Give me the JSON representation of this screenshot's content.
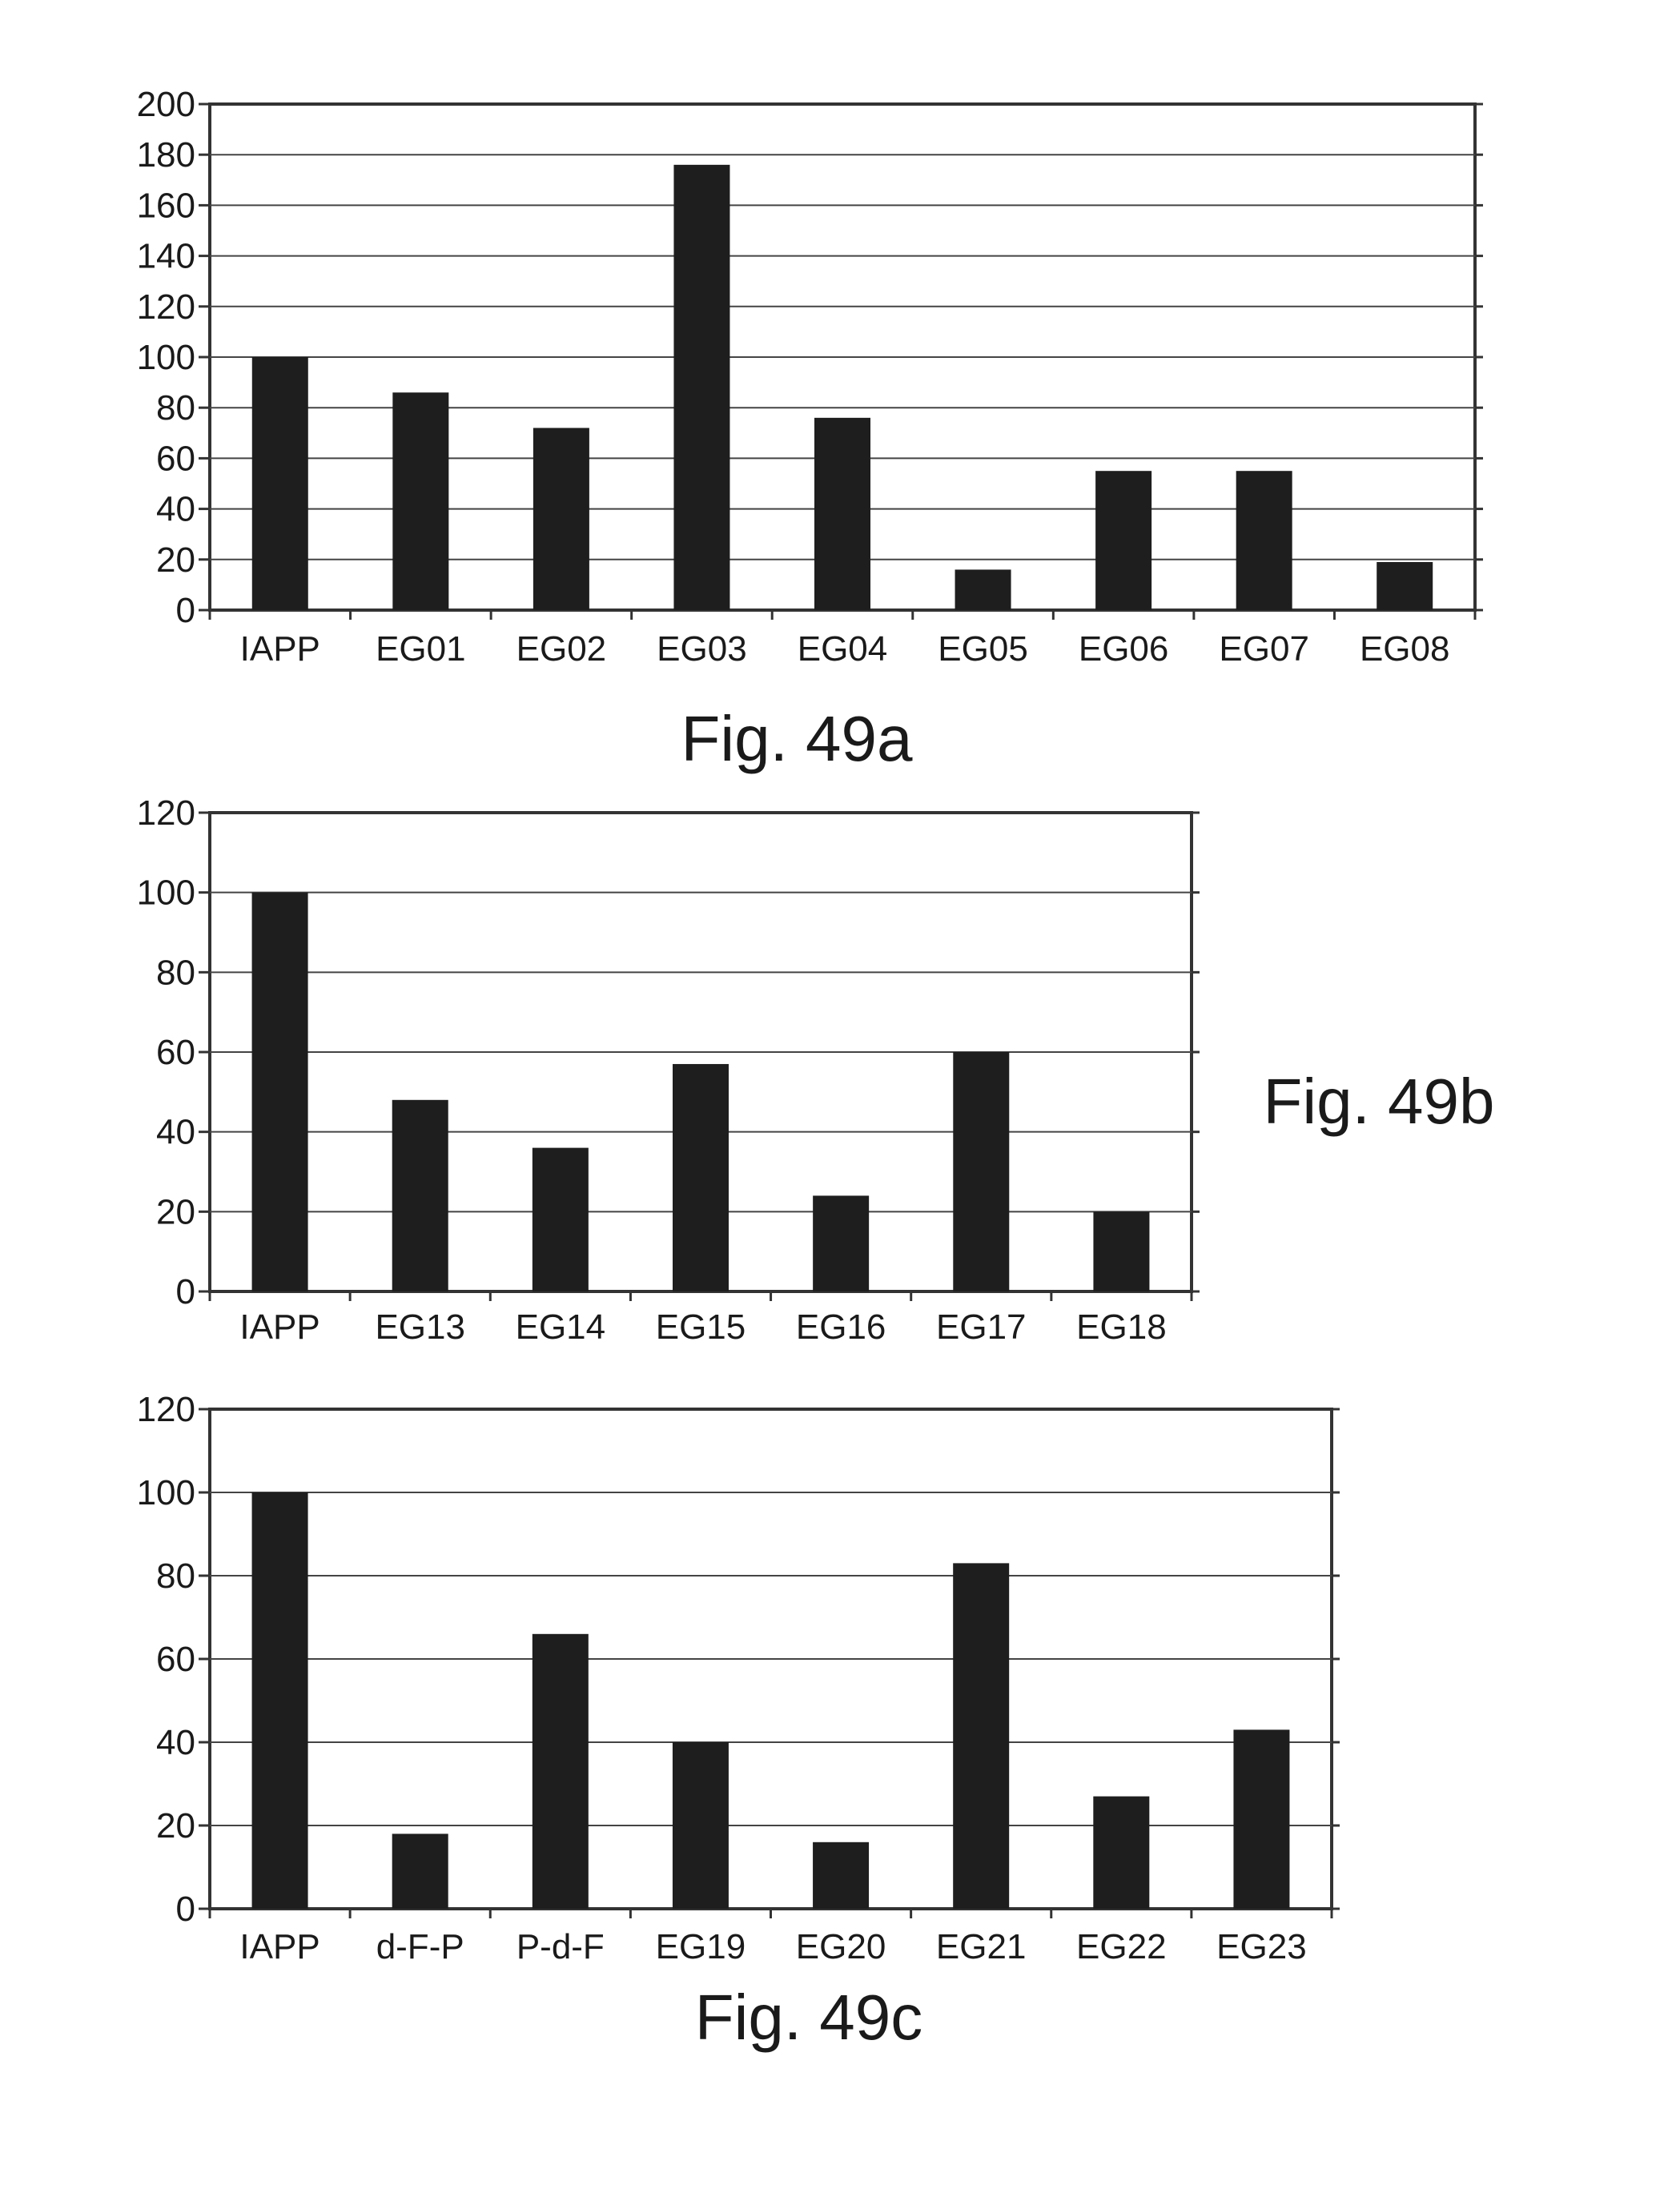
{
  "chart_data": [
    {
      "type": "bar",
      "caption": "Fig. 49a",
      "categories": [
        "IAPP",
        "EG01",
        "EG02",
        "EG03",
        "EG04",
        "EG05",
        "EG06",
        "EG07",
        "EG08"
      ],
      "values": [
        100,
        86,
        72,
        176,
        76,
        16,
        55,
        55,
        19
      ],
      "ylim": [
        0,
        200
      ],
      "yticks": [
        0,
        20,
        40,
        60,
        80,
        100,
        120,
        140,
        160,
        180,
        200
      ],
      "grid": true,
      "bar_color": "#1e1e1e"
    },
    {
      "type": "bar",
      "caption": "Fig. 49b",
      "categories": [
        "IAPP",
        "EG13",
        "EG14",
        "EG15",
        "EG16",
        "EG17",
        "EG18"
      ],
      "values": [
        100,
        48,
        36,
        57,
        24,
        60,
        20
      ],
      "ylim": [
        0,
        120
      ],
      "yticks": [
        0,
        20,
        40,
        60,
        80,
        100,
        120
      ],
      "grid": true,
      "bar_color": "#1e1e1e"
    },
    {
      "type": "bar",
      "caption": "Fig. 49c",
      "categories": [
        "IAPP",
        "d-F-P",
        "P-d-F",
        "EG19",
        "EG20",
        "EG21",
        "EG22",
        "EG23"
      ],
      "values": [
        100,
        18,
        66,
        40,
        16,
        83,
        27,
        43
      ],
      "ylim": [
        0,
        120
      ],
      "yticks": [
        0,
        20,
        40,
        60,
        80,
        100,
        120
      ],
      "grid": true,
      "bar_color": "#1e1e1e"
    }
  ]
}
